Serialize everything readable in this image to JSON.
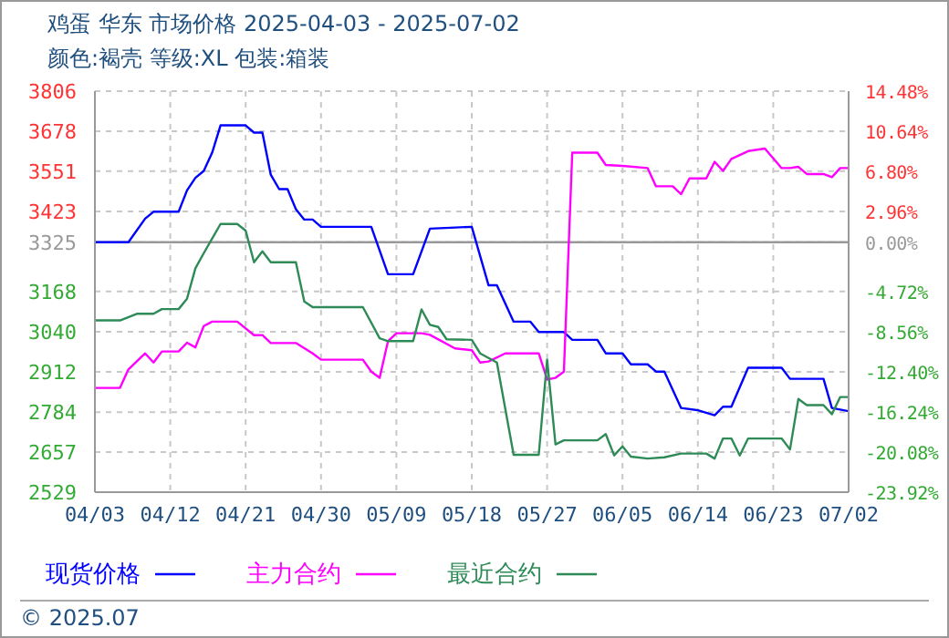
{
  "chart_data": {
    "type": "line",
    "title": "鸡蛋 华东 市场价格 2025-04-03 - 2025-07-02",
    "subtitle": "颜色:褐壳 等级:XL 包装:箱装",
    "xlim": [
      "2025-04-03",
      "2025-07-02"
    ],
    "xticks": [
      {
        "value": "2025-04-03",
        "label": "04/03"
      },
      {
        "value": "2025-04-12",
        "label": "04/12"
      },
      {
        "value": "2025-04-21",
        "label": "04/21"
      },
      {
        "value": "2025-04-30",
        "label": "04/30"
      },
      {
        "value": "2025-05-09",
        "label": "05/09"
      },
      {
        "value": "2025-05-18",
        "label": "05/18"
      },
      {
        "value": "2025-05-27",
        "label": "05/27"
      },
      {
        "value": "2025-06-05",
        "label": "06/05"
      },
      {
        "value": "2025-06-14",
        "label": "06/14"
      },
      {
        "value": "2025-06-23",
        "label": "06/23"
      },
      {
        "value": "2025-07-02",
        "label": "07/02"
      }
    ],
    "ylim": [
      2529,
      3806
    ],
    "yticks": [
      2529,
      2657,
      2784,
      2912,
      3040,
      3168,
      3325,
      3423,
      3551,
      3678,
      3806
    ],
    "y2lim": [
      -23.92,
      14.48
    ],
    "y2ticks": [
      {
        "value": -23.92,
        "label": "-23.92%"
      },
      {
        "value": -20.08,
        "label": "-20.08%"
      },
      {
        "value": -16.24,
        "label": "-16.24%"
      },
      {
        "value": -12.4,
        "label": "-12.40%"
      },
      {
        "value": -8.56,
        "label": "-8.56%"
      },
      {
        "value": -4.72,
        "label": "-4.72%"
      },
      {
        "value": 0,
        "label": "0.00%"
      },
      {
        "value": 2.96,
        "label": "2.96%"
      },
      {
        "value": 6.8,
        "label": "6.80%"
      },
      {
        "value": 10.64,
        "label": "10.64%"
      },
      {
        "value": 14.48,
        "label": "14.48%"
      }
    ],
    "grid": true,
    "legend": "bottom",
    "ref_lines": [
      {
        "axis": "y",
        "value": 3325,
        "color": "#999999"
      }
    ],
    "annotations": [
      "© 2025.07"
    ],
    "series": [
      {
        "name": "现货价格",
        "color": "#0000ff",
        "x": [
          "2025-04-03",
          "2025-04-07",
          "2025-04-09",
          "2025-04-10",
          "2025-04-13",
          "2025-04-14",
          "2025-04-15",
          "2025-04-16",
          "2025-04-17",
          "2025-04-18",
          "2025-04-21",
          "2025-04-22",
          "2025-04-23",
          "2025-04-24",
          "2025-04-25",
          "2025-04-26",
          "2025-04-27",
          "2025-04-28",
          "2025-04-29",
          "2025-04-30",
          "2025-05-06",
          "2025-05-08",
          "2025-05-11",
          "2025-05-13",
          "2025-05-18",
          "2025-05-20",
          "2025-05-21",
          "2025-05-23",
          "2025-05-25",
          "2025-05-26",
          "2025-05-29",
          "2025-05-30",
          "2025-06-02",
          "2025-06-03",
          "2025-06-05",
          "2025-06-06",
          "2025-06-08",
          "2025-06-09",
          "2025-06-10",
          "2025-06-12",
          "2025-06-14",
          "2025-06-16",
          "2025-06-17",
          "2025-06-18",
          "2025-06-20",
          "2025-06-24",
          "2025-06-25",
          "2025-06-29",
          "2025-06-30",
          "2025-07-02"
        ],
        "values": [
          3325,
          3325,
          3400,
          3422,
          3422,
          3490,
          3530,
          3552,
          3610,
          3697,
          3697,
          3674,
          3674,
          3540,
          3494,
          3494,
          3430,
          3397,
          3397,
          3374,
          3374,
          3223,
          3223,
          3368,
          3374,
          3188,
          3188,
          3072,
          3072,
          3039,
          3039,
          3014,
          3014,
          2971,
          2971,
          2936,
          2936,
          2913,
          2913,
          2797,
          2790,
          2774,
          2801,
          2801,
          2925,
          2925,
          2890,
          2890,
          2797,
          2787
        ]
      },
      {
        "name": "主力合约",
        "color": "#ff00ff",
        "x": [
          "2025-04-03",
          "2025-04-06",
          "2025-04-07",
          "2025-04-09",
          "2025-04-10",
          "2025-04-11",
          "2025-04-13",
          "2025-04-14",
          "2025-04-15",
          "2025-04-16",
          "2025-04-17",
          "2025-04-20",
          "2025-04-22",
          "2025-04-23",
          "2025-04-24",
          "2025-04-27",
          "2025-04-29",
          "2025-04-30",
          "2025-05-05",
          "2025-05-06",
          "2025-05-07",
          "2025-05-08",
          "2025-05-09",
          "2025-05-12",
          "2025-05-13",
          "2025-05-16",
          "2025-05-18",
          "2025-05-19",
          "2025-05-20",
          "2025-05-22",
          "2025-05-26",
          "2025-05-27",
          "2025-05-28",
          "2025-05-29",
          "2025-05-30",
          "2025-06-02",
          "2025-06-03",
          "2025-06-05",
          "2025-06-08",
          "2025-06-09",
          "2025-06-11",
          "2025-06-12",
          "2025-06-13",
          "2025-06-15",
          "2025-06-16",
          "2025-06-17",
          "2025-06-18",
          "2025-06-20",
          "2025-06-22",
          "2025-06-24",
          "2025-06-25",
          "2025-06-26",
          "2025-06-27",
          "2025-06-29",
          "2025-06-30",
          "2025-07-01",
          "2025-07-02"
        ],
        "values": [
          2861,
          2861,
          2920,
          2971,
          2942,
          2977,
          2977,
          3005,
          2990,
          3058,
          3072,
          3072,
          3029,
          3029,
          3004,
          3004,
          2971,
          2951,
          2951,
          2913,
          2893,
          3010,
          3035,
          3035,
          3030,
          2987,
          2981,
          2942,
          2945,
          2971,
          2971,
          2888,
          2893,
          2913,
          3610,
          3610,
          3571,
          3568,
          3561,
          3503,
          3503,
          3478,
          3528,
          3528,
          3581,
          3552,
          3590,
          3615,
          3623,
          3561,
          3561,
          3565,
          3542,
          3542,
          3532,
          3561,
          3561
        ]
      },
      {
        "name": "最近合约",
        "color": "#2e8b57",
        "x": [
          "2025-04-03",
          "2025-04-06",
          "2025-04-08",
          "2025-04-10",
          "2025-04-11",
          "2025-04-13",
          "2025-04-14",
          "2025-04-15",
          "2025-04-16",
          "2025-04-18",
          "2025-04-20",
          "2025-04-21",
          "2025-04-22",
          "2025-04-23",
          "2025-04-24",
          "2025-04-27",
          "2025-04-28",
          "2025-04-29",
          "2025-05-05",
          "2025-05-07",
          "2025-05-08",
          "2025-05-11",
          "2025-05-12",
          "2025-05-13",
          "2025-05-14",
          "2025-05-15",
          "2025-05-18",
          "2025-05-19",
          "2025-05-21",
          "2025-05-23",
          "2025-05-26",
          "2025-05-27",
          "2025-05-28",
          "2025-05-29",
          "2025-06-02",
          "2025-06-03",
          "2025-06-04",
          "2025-06-05",
          "2025-06-06",
          "2025-06-08",
          "2025-06-10",
          "2025-06-12",
          "2025-06-15",
          "2025-06-16",
          "2025-06-17",
          "2025-06-18",
          "2025-06-19",
          "2025-06-20",
          "2025-06-24",
          "2025-06-25",
          "2025-06-26",
          "2025-06-27",
          "2025-06-29",
          "2025-06-30",
          "2025-07-01",
          "2025-07-02"
        ],
        "values": [
          3076,
          3076,
          3097,
          3097,
          3112,
          3112,
          3145,
          3242,
          3290,
          3383,
          3383,
          3362,
          3261,
          3296,
          3261,
          3261,
          3136,
          3118,
          3118,
          3019,
          3010,
          3010,
          3111,
          3062,
          3055,
          3016,
          3014,
          2971,
          2942,
          2648,
          2648,
          2951,
          2681,
          2694,
          2694,
          2714,
          2646,
          2675,
          2642,
          2636,
          2640,
          2652,
          2652,
          2636,
          2700,
          2700,
          2646,
          2700,
          2700,
          2665,
          2826,
          2806,
          2806,
          2777,
          2832,
          2832
        ]
      }
    ]
  }
}
